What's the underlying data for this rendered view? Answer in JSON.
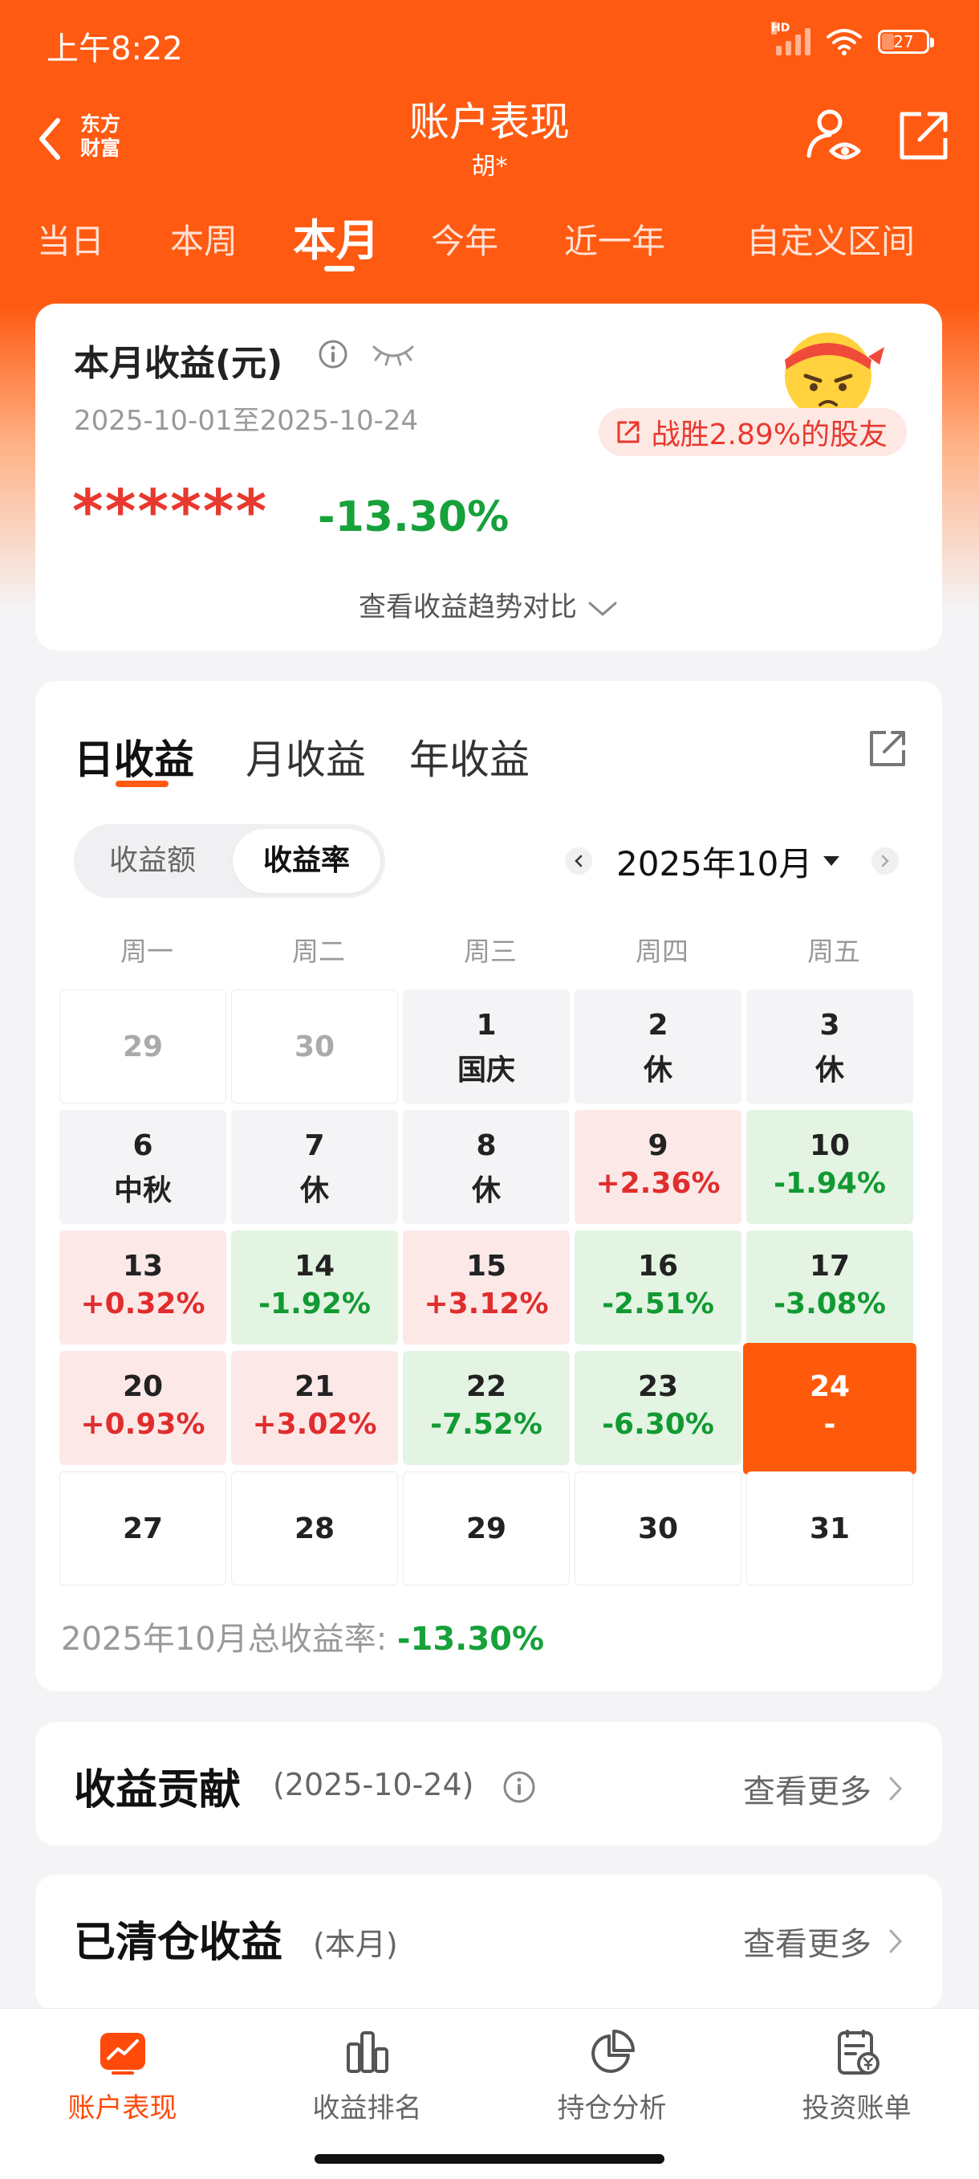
{
  "status_bar": {
    "time": "上午8:22",
    "network": "HD",
    "battery": "27"
  },
  "header": {
    "brand_line1": "东方",
    "brand_line2": "财富",
    "title": "账户表现",
    "subtitle": "胡*"
  },
  "period_tabs": [
    {
      "label": "当日",
      "active": false
    },
    {
      "label": "本周",
      "active": false
    },
    {
      "label": "本月",
      "active": true
    },
    {
      "label": "今年",
      "active": false
    },
    {
      "label": "近一年",
      "active": false
    },
    {
      "label": "自定义区间",
      "active": false
    }
  ],
  "summary": {
    "label": "本月收益(元)",
    "date_range": "2025-10-01至2025-10-24",
    "beat_text": "战胜2.89%的股友",
    "masked_amount": "******",
    "return_rate": "-13.30%",
    "trend_link": "查看收益趋势对比"
  },
  "earnings": {
    "tabs": [
      {
        "label": "日收益",
        "active": true
      },
      {
        "label": "月收益",
        "active": false
      },
      {
        "label": "年收益",
        "active": false
      }
    ],
    "toggle": [
      {
        "label": "收益额",
        "active": false
      },
      {
        "label": "收益率",
        "active": true
      }
    ],
    "month": "2025年10月",
    "weekdays": [
      "周一",
      "周二",
      "周三",
      "周四",
      "周五"
    ],
    "weeks": [
      [
        {
          "day": "29",
          "value": "",
          "kind": "out"
        },
        {
          "day": "30",
          "value": "",
          "kind": "out"
        },
        {
          "day": "1",
          "value": "国庆",
          "kind": "holiday"
        },
        {
          "day": "2",
          "value": "休",
          "kind": "holiday"
        },
        {
          "day": "3",
          "value": "休",
          "kind": "holiday"
        }
      ],
      [
        {
          "day": "6",
          "value": "中秋",
          "kind": "holiday"
        },
        {
          "day": "7",
          "value": "休",
          "kind": "holiday"
        },
        {
          "day": "8",
          "value": "休",
          "kind": "holiday"
        },
        {
          "day": "9",
          "value": "+2.36%",
          "kind": "up"
        },
        {
          "day": "10",
          "value": "-1.94%",
          "kind": "down"
        }
      ],
      [
        {
          "day": "13",
          "value": "+0.32%",
          "kind": "up"
        },
        {
          "day": "14",
          "value": "-1.92%",
          "kind": "down"
        },
        {
          "day": "15",
          "value": "+3.12%",
          "kind": "up"
        },
        {
          "day": "16",
          "value": "-2.51%",
          "kind": "down"
        },
        {
          "day": "17",
          "value": "-3.08%",
          "kind": "down"
        }
      ],
      [
        {
          "day": "20",
          "value": "+0.93%",
          "kind": "up"
        },
        {
          "day": "21",
          "value": "+3.02%",
          "kind": "up"
        },
        {
          "day": "22",
          "value": "-7.52%",
          "kind": "down"
        },
        {
          "day": "23",
          "value": "-6.30%",
          "kind": "down"
        },
        {
          "day": "24",
          "value": "-",
          "kind": "today"
        }
      ],
      [
        {
          "day": "27",
          "value": "",
          "kind": "future"
        },
        {
          "day": "28",
          "value": "",
          "kind": "future"
        },
        {
          "day": "29",
          "value": "",
          "kind": "future"
        },
        {
          "day": "30",
          "value": "",
          "kind": "future"
        },
        {
          "day": "31",
          "value": "",
          "kind": "future"
        }
      ]
    ],
    "total_label": "2025年10月总收益率: ",
    "total_value": "-13.30%"
  },
  "contribution": {
    "title": "收益贡献",
    "date": "(2025-10-24)",
    "more": "查看更多"
  },
  "cleared": {
    "title": "已清仓收益",
    "scope": "(本月)",
    "more": "查看更多"
  },
  "bottom_nav": [
    {
      "label": "账户表现",
      "icon": "chart-icon",
      "active": true
    },
    {
      "label": "收益排名",
      "icon": "bars-icon",
      "active": false
    },
    {
      "label": "持仓分析",
      "icon": "pie-icon",
      "active": false
    },
    {
      "label": "投资账单",
      "icon": "bill-icon",
      "active": false
    }
  ],
  "colors": {
    "brand": "#ff5a12",
    "up": "#e02d2d",
    "down": "#119a32",
    "up_bg": "#fde8e8",
    "down_bg": "#e3f4e3"
  }
}
